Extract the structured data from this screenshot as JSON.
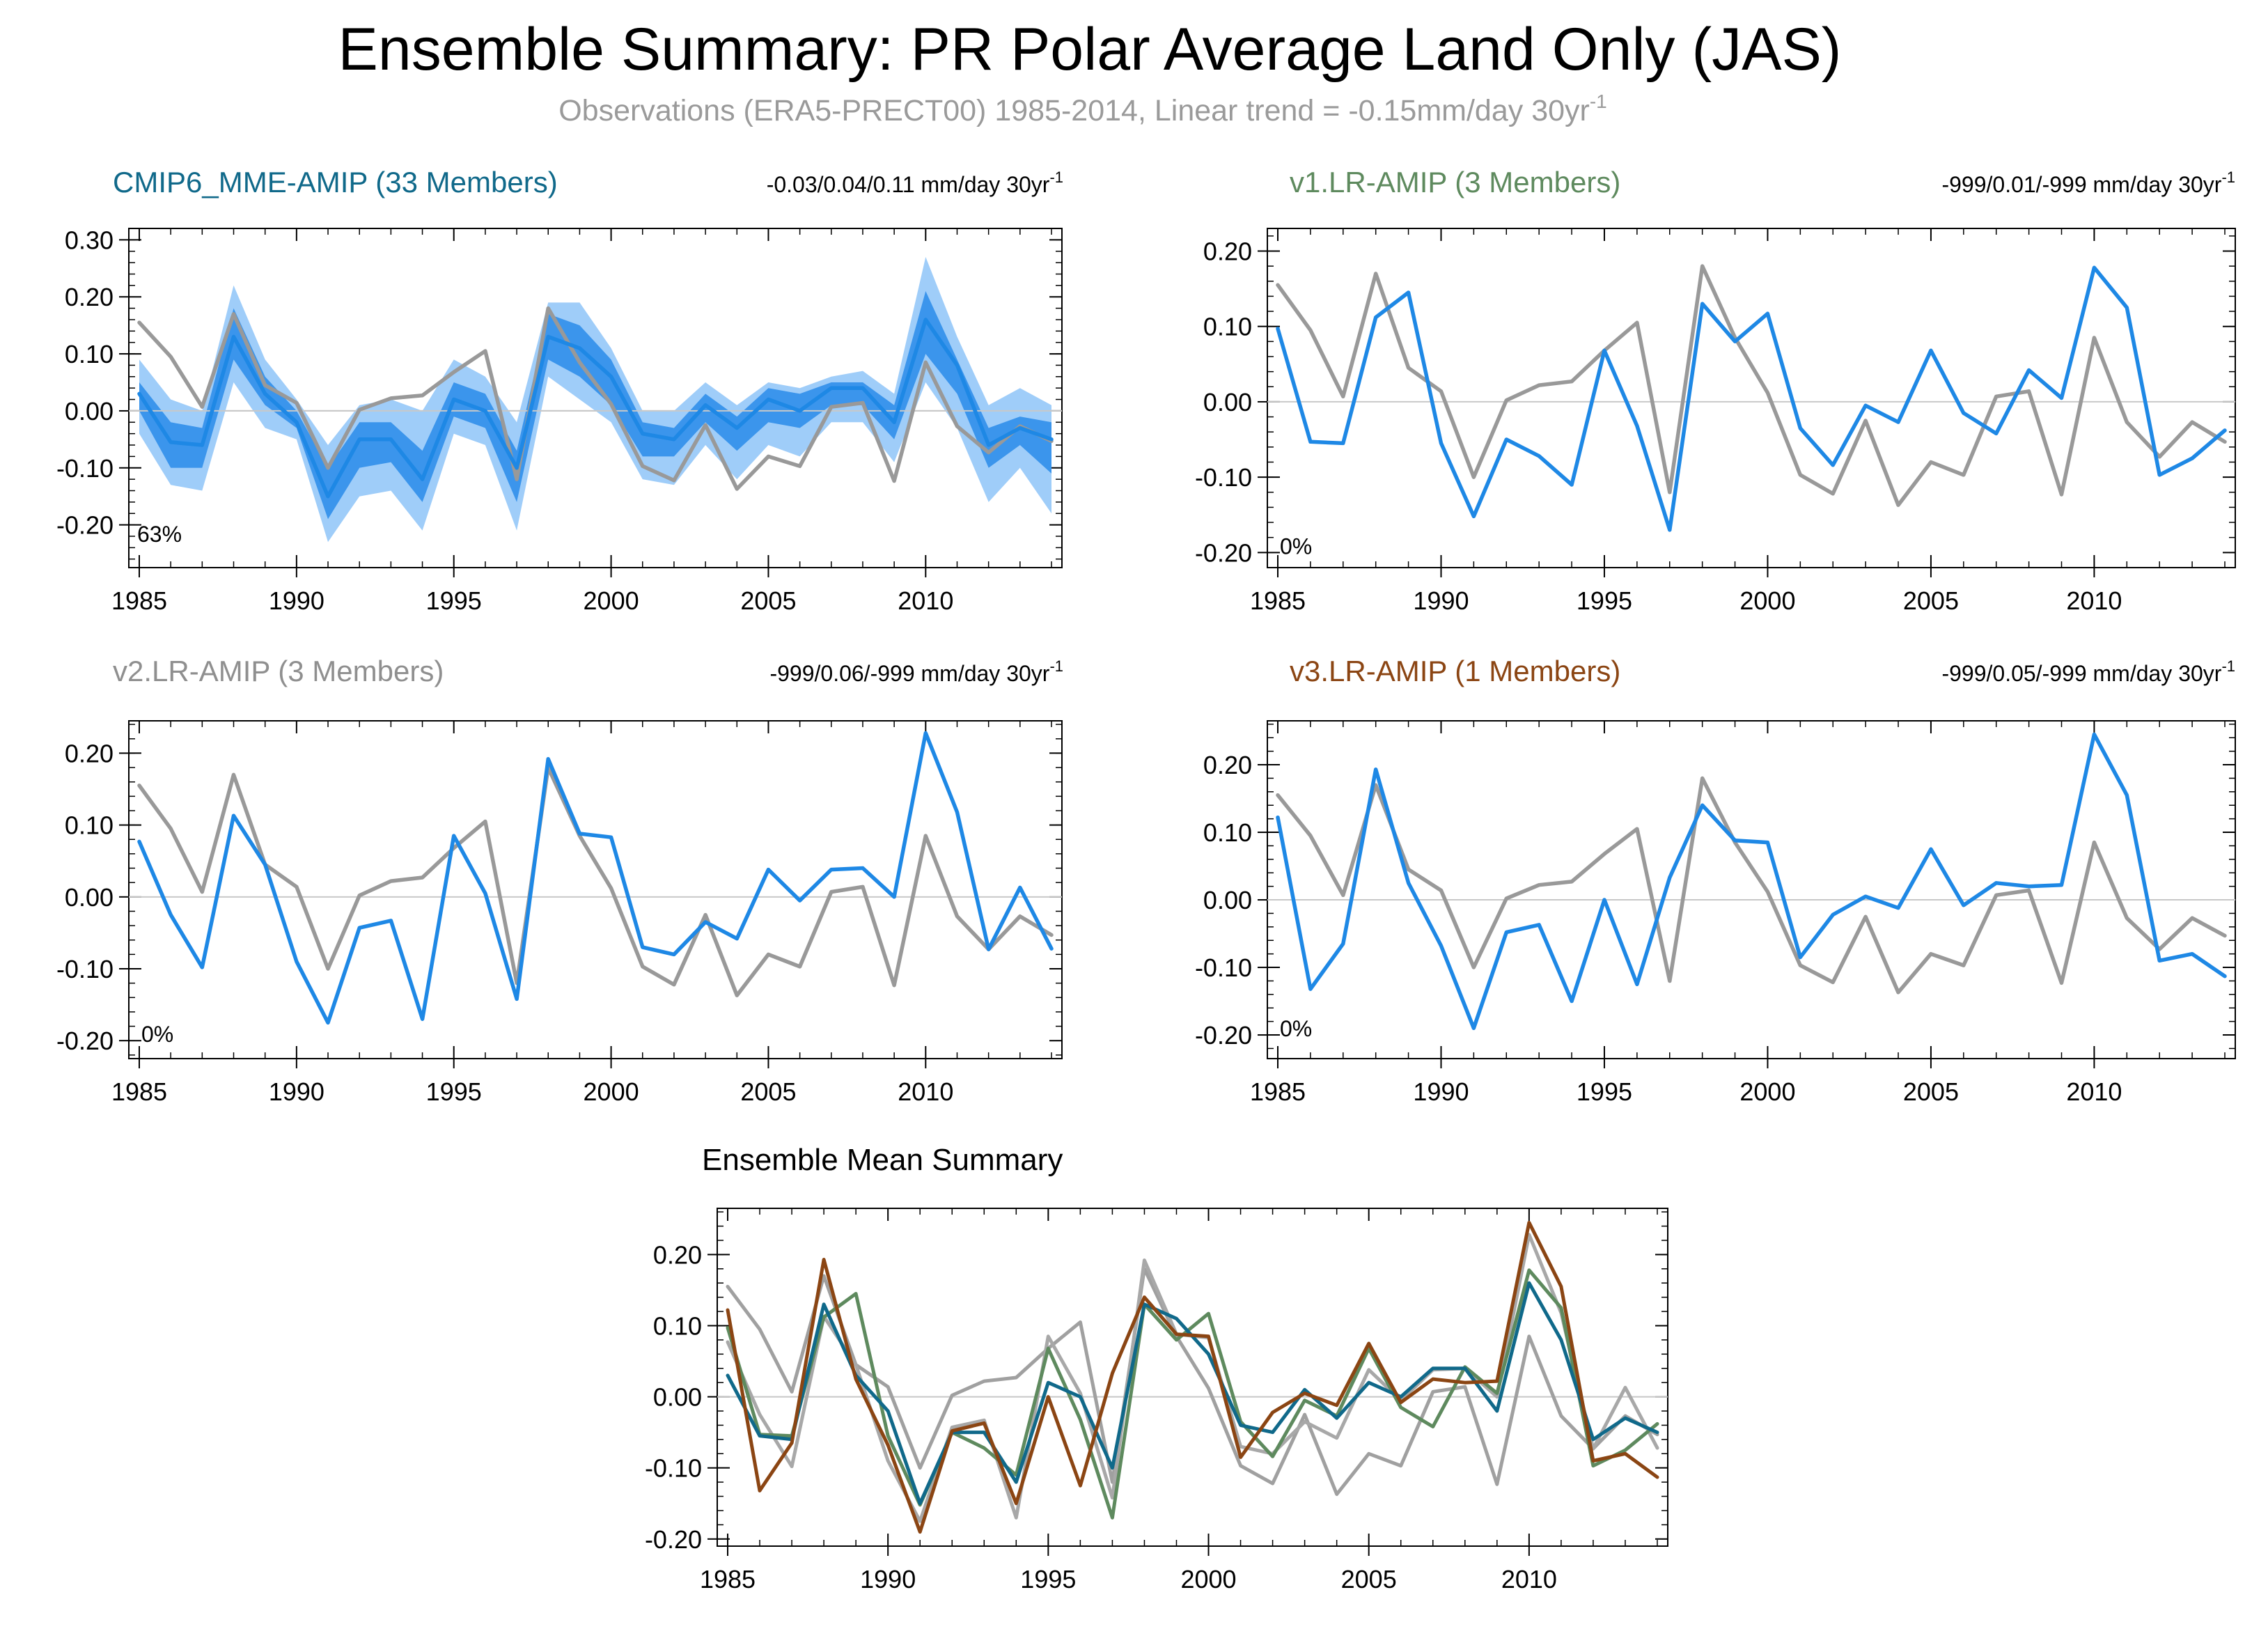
{
  "figure": {
    "title": "Ensemble Summary: PR Polar Average Land Only (JAS)",
    "subtitle_main": "Observations (ERA5-PRECT00) 1985-2014, Linear trend = -0.15mm/day 30yr",
    "subtitle_sup": "-1"
  },
  "colors": {
    "observation": "#999999",
    "model": "#1e88e5",
    "band_outer": "#9fcdf9",
    "band_inner": "#3b95ec",
    "mme_title": "#10698a",
    "v1": "#5e8a5e",
    "v2": "#8f8f8f",
    "v3": "#8b4513",
    "zero_line": "#c8c8c8"
  },
  "chart_data": [
    {
      "id": "cmip6",
      "type": "line",
      "title": "CMIP6_MME-AMIP (33 Members)",
      "title_color": "#10698a",
      "trend_main": "-0.03/0.04/0.11 mm/day 30yr",
      "trend_sup": "-1",
      "percent": "63%",
      "xlim": [
        1985,
        2014
      ],
      "ylim": [
        -0.275,
        0.32
      ],
      "xticks": [
        "1985",
        "1990",
        "1995",
        "2000",
        "2005",
        "2010"
      ],
      "yticks": [
        "0.30",
        "0.20",
        "0.10",
        "0.00",
        "-0.10",
        "-0.20"
      ],
      "ytick_values": [
        0.3,
        0.2,
        0.1,
        0.0,
        -0.1,
        -0.2
      ],
      "x": [
        1985,
        1986,
        1987,
        1988,
        1989,
        1990,
        1991,
        1992,
        1993,
        1994,
        1995,
        1996,
        1997,
        1998,
        1999,
        2000,
        2001,
        2002,
        2003,
        2004,
        2005,
        2006,
        2007,
        2008,
        2009,
        2010,
        2011,
        2012,
        2013,
        2014
      ],
      "band_outer_upper": [
        0.09,
        0.02,
        0.0,
        0.22,
        0.09,
        0.02,
        -0.06,
        0.01,
        0.02,
        0.0,
        0.09,
        0.06,
        -0.02,
        0.19,
        0.19,
        0.11,
        0.0,
        0.0,
        0.05,
        0.01,
        0.05,
        0.04,
        0.06,
        0.07,
        0.03,
        0.27,
        0.13,
        0.01,
        0.04,
        0.01
      ],
      "band_outer_lower": [
        -0.04,
        -0.13,
        -0.14,
        0.05,
        -0.03,
        -0.05,
        -0.23,
        -0.15,
        -0.14,
        -0.21,
        -0.04,
        -0.06,
        -0.21,
        0.06,
        0.02,
        -0.02,
        -0.12,
        -0.13,
        -0.06,
        -0.12,
        -0.06,
        -0.08,
        -0.02,
        -0.02,
        -0.09,
        0.05,
        -0.03,
        -0.16,
        -0.1,
        -0.18
      ],
      "band_inner_upper": [
        0.05,
        -0.02,
        -0.03,
        0.18,
        0.06,
        0.0,
        -0.1,
        -0.02,
        -0.02,
        -0.07,
        0.05,
        0.03,
        -0.07,
        0.17,
        0.15,
        0.09,
        -0.02,
        -0.03,
        0.03,
        -0.01,
        0.04,
        0.03,
        0.05,
        0.05,
        0.01,
        0.21,
        0.09,
        -0.03,
        -0.01,
        -0.02
      ],
      "band_inner_lower": [
        0.0,
        -0.1,
        -0.1,
        0.09,
        0.01,
        -0.03,
        -0.19,
        -0.1,
        -0.09,
        -0.16,
        -0.01,
        -0.03,
        -0.16,
        0.09,
        0.06,
        0.01,
        -0.08,
        -0.08,
        -0.02,
        -0.07,
        -0.02,
        -0.03,
        0.01,
        0.01,
        -0.05,
        0.1,
        0.03,
        -0.1,
        -0.06,
        -0.11
      ],
      "series": [
        {
          "name": "Observations",
          "color": "#999999",
          "values": [
            0.155,
            0.095,
            0.007,
            0.17,
            0.045,
            0.014,
            -0.1,
            0.002,
            0.022,
            0.027,
            0.068,
            0.105,
            -0.12,
            0.18,
            0.085,
            0.012,
            -0.097,
            -0.122,
            -0.025,
            -0.137,
            -0.08,
            -0.097,
            0.007,
            0.014,
            -0.123,
            0.085,
            -0.027,
            -0.073,
            -0.027,
            -0.053
          ]
        },
        {
          "name": "CMIP6_MME-AMIP",
          "color": "#1e88e5",
          "values": [
            0.03,
            -0.055,
            -0.06,
            0.13,
            0.03,
            -0.02,
            -0.15,
            -0.05,
            -0.05,
            -0.12,
            0.02,
            0.0,
            -0.1,
            0.13,
            0.11,
            0.06,
            -0.04,
            -0.05,
            0.01,
            -0.03,
            0.02,
            0.0,
            0.04,
            0.04,
            -0.02,
            0.16,
            0.08,
            -0.06,
            -0.03,
            -0.05
          ]
        }
      ]
    },
    {
      "id": "v1",
      "type": "line",
      "title": "v1.LR-AMIP (3 Members)",
      "title_color": "#5e8a5e",
      "trend_main": "-999/0.01/-999 mm/day 30yr",
      "trend_sup": "-1",
      "percent": "0%",
      "xlim": [
        1985,
        2014
      ],
      "ylim": [
        -0.22,
        0.23
      ],
      "xticks": [
        "1985",
        "1990",
        "1995",
        "2000",
        "2005",
        "2010"
      ],
      "yticks": [
        "0.20",
        "0.10",
        "0.00",
        "-0.10",
        "-0.20"
      ],
      "ytick_values": [
        0.2,
        0.1,
        0.0,
        -0.1,
        -0.2
      ],
      "x": [
        1985,
        1986,
        1987,
        1988,
        1989,
        1990,
        1991,
        1992,
        1993,
        1994,
        1995,
        1996,
        1997,
        1998,
        1999,
        2000,
        2001,
        2002,
        2003,
        2004,
        2005,
        2006,
        2007,
        2008,
        2009,
        2010,
        2011,
        2012,
        2013,
        2014
      ],
      "series": [
        {
          "name": "Observations",
          "color": "#999999",
          "values": [
            0.155,
            0.095,
            0.007,
            0.17,
            0.045,
            0.014,
            -0.1,
            0.002,
            0.022,
            0.027,
            0.068,
            0.105,
            -0.12,
            0.18,
            0.085,
            0.012,
            -0.097,
            -0.122,
            -0.025,
            -0.137,
            -0.08,
            -0.097,
            0.007,
            0.014,
            -0.123,
            0.085,
            -0.027,
            -0.073,
            -0.027,
            -0.053
          ]
        },
        {
          "name": "v1.LR-AMIP",
          "color": "#1e88e5",
          "values": [
            0.097,
            -0.053,
            -0.055,
            0.112,
            0.145,
            -0.055,
            -0.152,
            -0.05,
            -0.072,
            -0.11,
            0.068,
            -0.032,
            -0.17,
            0.13,
            0.08,
            0.117,
            -0.035,
            -0.084,
            -0.005,
            -0.027,
            0.068,
            -0.015,
            -0.042,
            0.042,
            0.005,
            0.178,
            0.125,
            -0.097,
            -0.075,
            -0.038
          ]
        }
      ]
    },
    {
      "id": "v2",
      "type": "line",
      "title": "v2.LR-AMIP (3 Members)",
      "title_color": "#8f8f8f",
      "trend_main": "-999/0.06/-999 mm/day 30yr",
      "trend_sup": "-1",
      "percent": "0%",
      "xlim": [
        1985,
        2014
      ],
      "ylim": [
        -0.225,
        0.245
      ],
      "xticks": [
        "1985",
        "1990",
        "1995",
        "2000",
        "2005",
        "2010"
      ],
      "yticks": [
        "0.20",
        "0.10",
        "0.00",
        "-0.10",
        "-0.20"
      ],
      "ytick_values": [
        0.2,
        0.1,
        0.0,
        -0.1,
        -0.2
      ],
      "x": [
        1985,
        1986,
        1987,
        1988,
        1989,
        1990,
        1991,
        1992,
        1993,
        1994,
        1995,
        1996,
        1997,
        1998,
        1999,
        2000,
        2001,
        2002,
        2003,
        2004,
        2005,
        2006,
        2007,
        2008,
        2009,
        2010,
        2011,
        2012,
        2013,
        2014
      ],
      "series": [
        {
          "name": "Observations",
          "color": "#999999",
          "values": [
            0.155,
            0.095,
            0.007,
            0.17,
            0.045,
            0.014,
            -0.1,
            0.002,
            0.022,
            0.027,
            0.068,
            0.105,
            -0.12,
            0.18,
            0.085,
            0.012,
            -0.097,
            -0.122,
            -0.025,
            -0.137,
            -0.08,
            -0.097,
            0.007,
            0.014,
            -0.123,
            0.085,
            -0.027,
            -0.073,
            -0.027,
            -0.053
          ]
        },
        {
          "name": "v2.LR-AMIP",
          "color": "#1e88e5",
          "values": [
            0.077,
            -0.025,
            -0.098,
            0.113,
            0.045,
            -0.09,
            -0.175,
            -0.043,
            -0.033,
            -0.17,
            0.085,
            0.005,
            -0.142,
            0.192,
            0.088,
            0.083,
            -0.07,
            -0.08,
            -0.035,
            -0.058,
            0.038,
            -0.005,
            0.038,
            0.04,
            0.0,
            0.228,
            0.118,
            -0.073,
            0.013,
            -0.072
          ]
        }
      ]
    },
    {
      "id": "v3",
      "type": "line",
      "title": "v3.LR-AMIP (1 Members)",
      "title_color": "#8b4513",
      "trend_main": "-999/0.05/-999 mm/day 30yr",
      "trend_sup": "-1",
      "percent": "0%",
      "xlim": [
        1985,
        2014
      ],
      "ylim": [
        -0.235,
        0.265
      ],
      "xticks": [
        "1985",
        "1990",
        "1995",
        "2000",
        "2005",
        "2010"
      ],
      "yticks": [
        "0.20",
        "0.10",
        "0.00",
        "-0.10",
        "-0.20"
      ],
      "ytick_values": [
        0.2,
        0.1,
        0.0,
        -0.1,
        -0.2
      ],
      "x": [
        1985,
        1986,
        1987,
        1988,
        1989,
        1990,
        1991,
        1992,
        1993,
        1994,
        1995,
        1996,
        1997,
        1998,
        1999,
        2000,
        2001,
        2002,
        2003,
        2004,
        2005,
        2006,
        2007,
        2008,
        2009,
        2010,
        2011,
        2012,
        2013,
        2014
      ],
      "series": [
        {
          "name": "Observations",
          "color": "#999999",
          "values": [
            0.155,
            0.095,
            0.007,
            0.17,
            0.045,
            0.014,
            -0.1,
            0.002,
            0.022,
            0.027,
            0.068,
            0.105,
            -0.12,
            0.18,
            0.085,
            0.012,
            -0.097,
            -0.122,
            -0.025,
            -0.137,
            -0.08,
            -0.097,
            0.007,
            0.014,
            -0.123,
            0.085,
            -0.027,
            -0.073,
            -0.027,
            -0.053
          ]
        },
        {
          "name": "v3.LR-AMIP",
          "color": "#1e88e5",
          "values": [
            0.122,
            -0.132,
            -0.065,
            0.193,
            0.025,
            -0.068,
            -0.19,
            -0.048,
            -0.037,
            -0.15,
            0.0,
            -0.125,
            0.033,
            0.14,
            0.088,
            0.085,
            -0.085,
            -0.022,
            0.005,
            -0.012,
            0.075,
            -0.008,
            0.025,
            0.02,
            0.022,
            0.245,
            0.155,
            -0.09,
            -0.08,
            -0.113
          ]
        }
      ]
    },
    {
      "id": "ensmean",
      "type": "line",
      "title": "Ensemble Mean Summary",
      "title_color": "#000000",
      "xlim": [
        1985,
        2014
      ],
      "ylim": [
        -0.21,
        0.265
      ],
      "xticks": [
        "1985",
        "1990",
        "1995",
        "2000",
        "2005",
        "2010"
      ],
      "yticks": [
        "0.20",
        "0.10",
        "0.00",
        "-0.10",
        "-0.20"
      ],
      "ytick_values": [
        0.2,
        0.1,
        0.0,
        -0.1,
        -0.2
      ],
      "x": [
        1985,
        1986,
        1987,
        1988,
        1989,
        1990,
        1991,
        1992,
        1993,
        1994,
        1995,
        1996,
        1997,
        1998,
        1999,
        2000,
        2001,
        2002,
        2003,
        2004,
        2005,
        2006,
        2007,
        2008,
        2009,
        2010,
        2011,
        2012,
        2013,
        2014
      ],
      "series": [
        {
          "name": "Observations",
          "color": "#a0a0a0",
          "values": [
            0.155,
            0.095,
            0.007,
            0.17,
            0.045,
            0.014,
            -0.1,
            0.002,
            0.022,
            0.027,
            0.068,
            0.105,
            -0.12,
            0.18,
            0.085,
            0.012,
            -0.097,
            -0.122,
            -0.025,
            -0.137,
            -0.08,
            -0.097,
            0.007,
            0.014,
            -0.123,
            0.085,
            -0.027,
            -0.073,
            -0.027,
            -0.053
          ]
        },
        {
          "name": "v2.LR-AMIP",
          "color": "#a8a8a8",
          "values": [
            0.077,
            -0.025,
            -0.098,
            0.113,
            0.045,
            -0.09,
            -0.175,
            -0.043,
            -0.033,
            -0.17,
            0.085,
            0.005,
            -0.142,
            0.192,
            0.088,
            0.083,
            -0.07,
            -0.08,
            -0.035,
            -0.058,
            0.038,
            -0.005,
            0.038,
            0.04,
            0.0,
            0.228,
            0.118,
            -0.073,
            0.013,
            -0.072
          ]
        },
        {
          "name": "v1.LR-AMIP",
          "color": "#5e8a5e",
          "values": [
            0.097,
            -0.053,
            -0.055,
            0.112,
            0.145,
            -0.055,
            -0.152,
            -0.05,
            -0.072,
            -0.11,
            0.068,
            -0.032,
            -0.17,
            0.13,
            0.08,
            0.117,
            -0.035,
            -0.084,
            -0.005,
            -0.027,
            0.068,
            -0.015,
            -0.042,
            0.042,
            0.005,
            0.178,
            0.125,
            -0.097,
            -0.075,
            -0.038
          ]
        },
        {
          "name": "CMIP6_MME-AMIP",
          "color": "#10698a",
          "values": [
            0.03,
            -0.055,
            -0.06,
            0.13,
            0.03,
            -0.02,
            -0.15,
            -0.05,
            -0.05,
            -0.12,
            0.02,
            0.0,
            -0.1,
            0.13,
            0.11,
            0.06,
            -0.04,
            -0.05,
            0.01,
            -0.03,
            0.02,
            0.0,
            0.04,
            0.04,
            -0.02,
            0.16,
            0.08,
            -0.06,
            -0.03,
            -0.05
          ]
        },
        {
          "name": "v3.LR-AMIP",
          "color": "#8b4513",
          "values": [
            0.122,
            -0.132,
            -0.065,
            0.193,
            0.025,
            -0.068,
            -0.19,
            -0.048,
            -0.037,
            -0.15,
            0.0,
            -0.125,
            0.033,
            0.14,
            0.088,
            0.085,
            -0.085,
            -0.022,
            0.005,
            -0.012,
            0.075,
            -0.008,
            0.025,
            0.02,
            0.022,
            0.245,
            0.155,
            -0.09,
            -0.08,
            -0.113
          ]
        }
      ]
    }
  ]
}
